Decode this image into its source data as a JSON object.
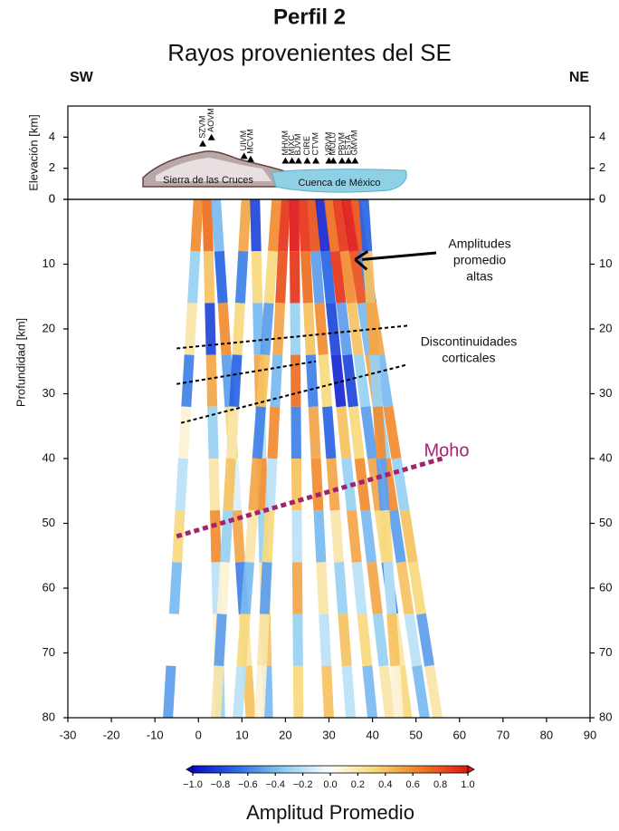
{
  "chart_data": {
    "type": "receiver-function-profile",
    "title": "Perfil 2",
    "subtitle": "Rayos provenientes del SE",
    "left_direction": "SW",
    "right_direction": "NE",
    "xlim": [
      -30,
      90
    ],
    "xticks": [
      -30,
      -20,
      -10,
      0,
      10,
      20,
      30,
      40,
      50,
      60,
      70,
      80,
      90
    ],
    "elevation": {
      "ylabel": "Elevación [km]",
      "ylim": [
        0,
        6
      ],
      "yticks": [
        0,
        2,
        4
      ],
      "stations": {
        "names": [
          "SZVM",
          "AOVM",
          "UIVM",
          "MCVM",
          "MHVM",
          "MIXC",
          "BJVM",
          "CIRE",
          "CTVM",
          "VRVM",
          "MULU",
          "PBVM",
          "ESTA",
          "GMVM"
        ],
        "x": [
          1,
          3,
          10.5,
          12,
          20,
          21.5,
          23,
          25,
          27,
          30,
          31,
          33,
          34.5,
          36
        ],
        "elevation": [
          3.4,
          3.8,
          2.6,
          2.4,
          2.3,
          2.3,
          2.3,
          2.3,
          2.3,
          2.3,
          2.3,
          2.3,
          2.3,
          2.3
        ]
      },
      "regions": [
        "Sierra de las Cruces",
        "Cuenca de México"
      ]
    },
    "depth": {
      "ylabel": "Profundidad [km]",
      "ylim": [
        0,
        80
      ],
      "yticks": [
        0,
        10,
        20,
        30,
        40,
        50,
        60,
        70,
        80
      ],
      "rays": [
        {
          "x": [
            0,
            -7
          ],
          "amplitudes": [
            0.6,
            -0.3,
            0.2,
            -0.6,
            0.1,
            -0.2,
            0.3,
            -0.4,
            0.0,
            -0.5
          ]
        },
        {
          "x": [
            2,
            5
          ],
          "amplitudes": [
            0.7,
            0.4,
            -0.8,
            0.5,
            -0.3,
            0.2,
            0.6,
            -0.2,
            0.1,
            -0.3
          ]
        },
        {
          "x": [
            4,
            12
          ],
          "amplitudes": [
            -0.4,
            -0.7,
            0.6,
            -0.5,
            0.3,
            -0.1,
            0.5,
            -0.6,
            0.2,
            0.4
          ]
        },
        {
          "x": [
            11,
            4
          ],
          "amplitudes": [
            0.5,
            -0.6,
            0.3,
            -0.7,
            0.2,
            0.4,
            -0.3,
            0.1,
            -0.5,
            0.2
          ]
        },
        {
          "x": [
            13,
            16
          ],
          "amplitudes": [
            -0.8,
            0.3,
            -0.4,
            0.5,
            -0.2,
            0.6,
            -0.3,
            0.2,
            0.4,
            -0.4
          ]
        },
        {
          "x": [
            20,
            14
          ],
          "amplitudes": [
            0.9,
            0.8,
            0.5,
            -0.4,
            0.6,
            -0.2,
            0.3,
            -0.5,
            0.2,
            0.1
          ]
        },
        {
          "x": [
            22,
            23
          ],
          "amplitudes": [
            1.0,
            0.9,
            -0.3,
            0.7,
            -0.6,
            0.4,
            -0.2,
            0.5,
            -0.3,
            0.3
          ]
        },
        {
          "x": [
            24,
            30
          ],
          "amplitudes": [
            0.9,
            0.7,
            0.4,
            -0.6,
            0.5,
            0.6,
            -0.4,
            0.2,
            -0.2,
            0.4
          ]
        },
        {
          "x": [
            26,
            35
          ],
          "amplitudes": [
            0.8,
            -0.5,
            0.6,
            0.3,
            -0.7,
            0.5,
            0.2,
            -0.3,
            0.4,
            -0.2
          ]
        },
        {
          "x": [
            28,
            40
          ],
          "amplitudes": [
            -0.9,
            -0.7,
            -0.8,
            -0.9,
            0.4,
            -0.3,
            0.5,
            -0.2,
            0.3,
            -0.4
          ]
        },
        {
          "x": [
            30,
            44
          ],
          "amplitudes": [
            0.7,
            0.9,
            -0.5,
            -0.8,
            0.3,
            0.6,
            -0.4,
            0.5,
            -0.3,
            0.2
          ]
        },
        {
          "x": [
            32,
            48
          ],
          "amplitudes": [
            0.9,
            0.6,
            0.4,
            -0.3,
            -0.5,
            0.5,
            0.3,
            -0.6,
            0.2,
            0.3
          ]
        },
        {
          "x": [
            34,
            52
          ],
          "amplitudes": [
            1.0,
            0.8,
            -0.4,
            0.5,
            -0.3,
            0.6,
            -0.5,
            0.4,
            -0.2,
            -0.4
          ]
        },
        {
          "x": [
            36,
            55
          ],
          "amplitudes": [
            0.8,
            -0.6,
            0.5,
            -0.4,
            0.6,
            -0.3,
            0.4,
            0.3,
            -0.5,
            0.2
          ]
        },
        {
          "x": [
            18,
            9
          ],
          "amplitudes": [
            0.6,
            0.3,
            -0.5,
            0.4,
            -0.6,
            0.5,
            0.2,
            -0.4,
            0.3,
            -0.2
          ]
        },
        {
          "x": [
            38,
            46
          ],
          "amplitudes": [
            -0.7,
            0.4,
            0.5,
            -0.3,
            0.6,
            -0.5,
            0.3,
            -0.2,
            0.4,
            0.1
          ]
        }
      ],
      "discontinuities": [
        [
          [
            -5,
            23
          ],
          [
            48,
            19.5
          ]
        ],
        [
          [
            -5,
            28.5
          ],
          [
            27,
            25
          ]
        ],
        [
          [
            -4,
            34.5
          ],
          [
            48,
            25.5
          ]
        ]
      ],
      "moho": {
        "label": "Moho",
        "color": "#a0246e",
        "line": [
          [
            -5,
            52
          ],
          [
            56,
            40
          ]
        ]
      },
      "annotations": [
        {
          "text_lines": [
            "Amplitudes",
            "promedio",
            "altas"
          ],
          "arrow_to": [
            36,
            9
          ]
        },
        {
          "text_lines": [
            "Discontinuidades",
            "corticales"
          ]
        }
      ]
    },
    "colorbar": {
      "label": "Amplitud Promedio",
      "lim": [
        -1,
        1
      ],
      "colors": [
        "#0a0ac8",
        "#2d6ee6",
        "#8ccdf2",
        "#ffffff",
        "#f7d670",
        "#f07820",
        "#e01818"
      ],
      "ticks": [
        {
          "value": -1,
          "label": "−1.0"
        },
        {
          "value": -0.8,
          "label": "−0.8"
        },
        {
          "value": -0.6,
          "label": "−0.6"
        },
        {
          "value": -0.4,
          "label": "−0.4"
        },
        {
          "value": -0.2,
          "label": "−0.2"
        },
        {
          "value": 0,
          "label": "0.0"
        },
        {
          "value": 0.2,
          "label": "0.2"
        },
        {
          "value": 0.4,
          "label": "0.4"
        },
        {
          "value": 0.6,
          "label": "0.6"
        },
        {
          "value": 0.8,
          "label": "0.8"
        },
        {
          "value": 1,
          "label": "1.0"
        }
      ]
    }
  }
}
